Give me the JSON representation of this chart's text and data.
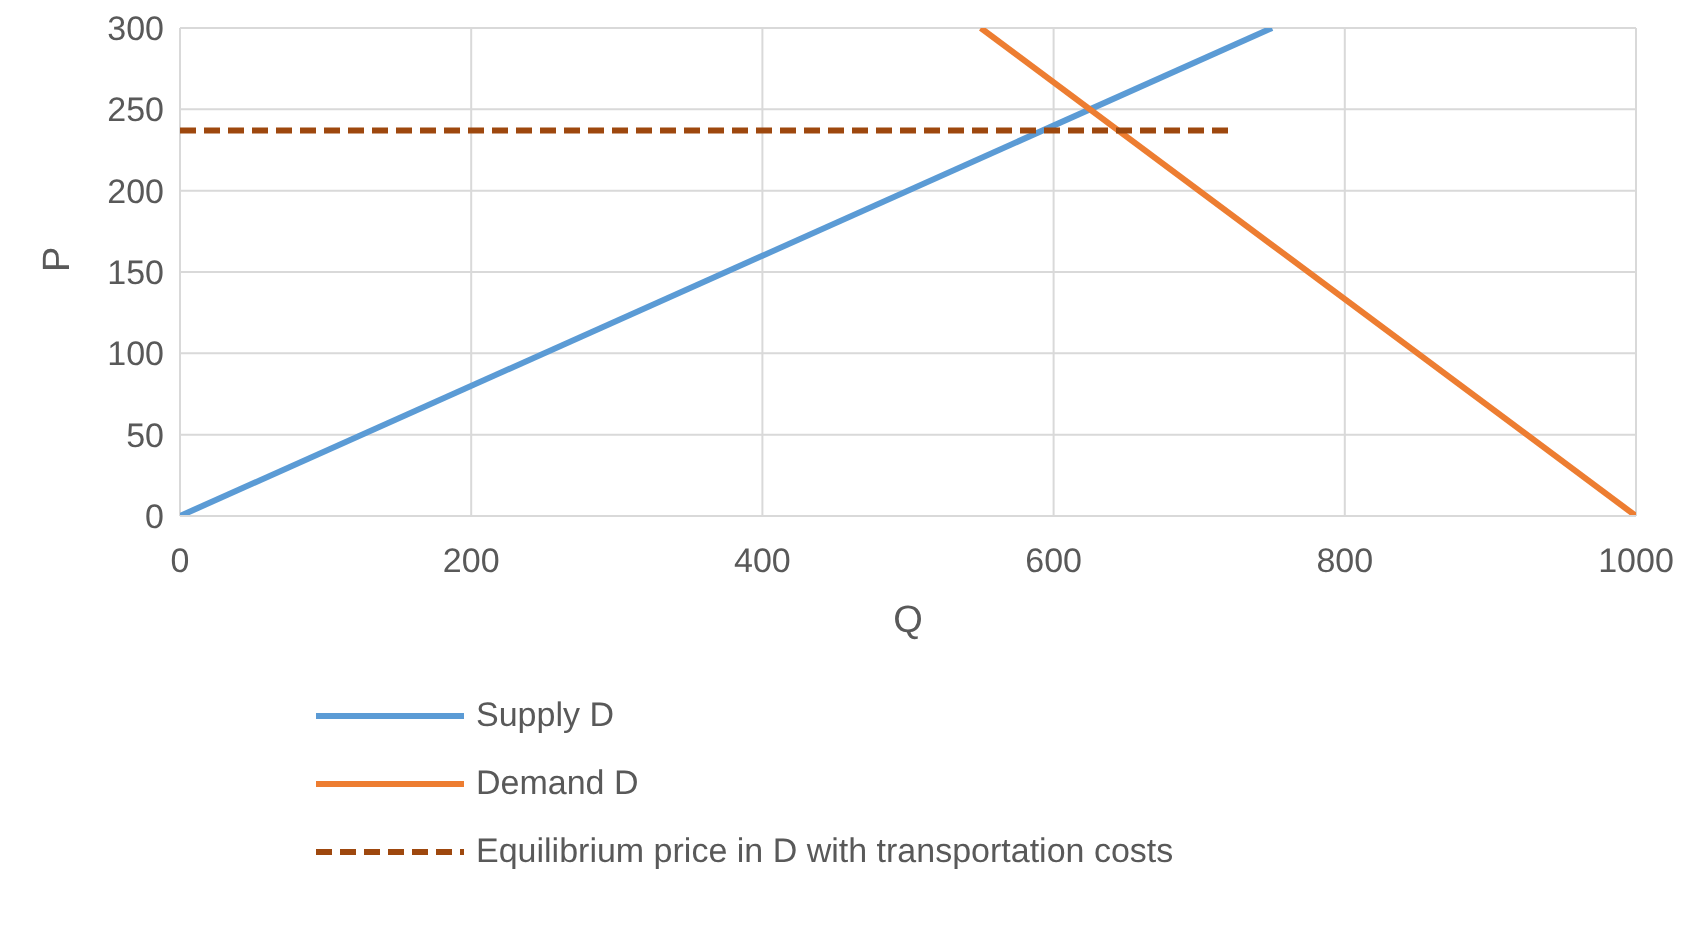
{
  "chart_data": {
    "type": "line",
    "xlabel": "Q",
    "ylabel": "P",
    "xlim": [
      0,
      1000
    ],
    "xticks": [
      0,
      200,
      400,
      600,
      800,
      1000
    ],
    "ylim": [
      0,
      300
    ],
    "yticks": [
      0,
      50,
      100,
      150,
      200,
      250,
      300
    ],
    "grid": true,
    "legend": "bottom",
    "marker": "none",
    "series": [
      {
        "name": "Supply D",
        "color": "#5b9bd5",
        "x": [
          0,
          750
        ],
        "values": [
          0,
          300
        ]
      },
      {
        "name": "Demand D",
        "color": "#ed7d31",
        "x": [
          550,
          1000
        ],
        "values": [
          300,
          0
        ]
      },
      {
        "name": "Equilibrium price in D with transportation costs",
        "color": "#9e480e",
        "x": [
          0,
          720
        ],
        "values": [
          237,
          237
        ],
        "line_style": "dashed"
      }
    ]
  }
}
